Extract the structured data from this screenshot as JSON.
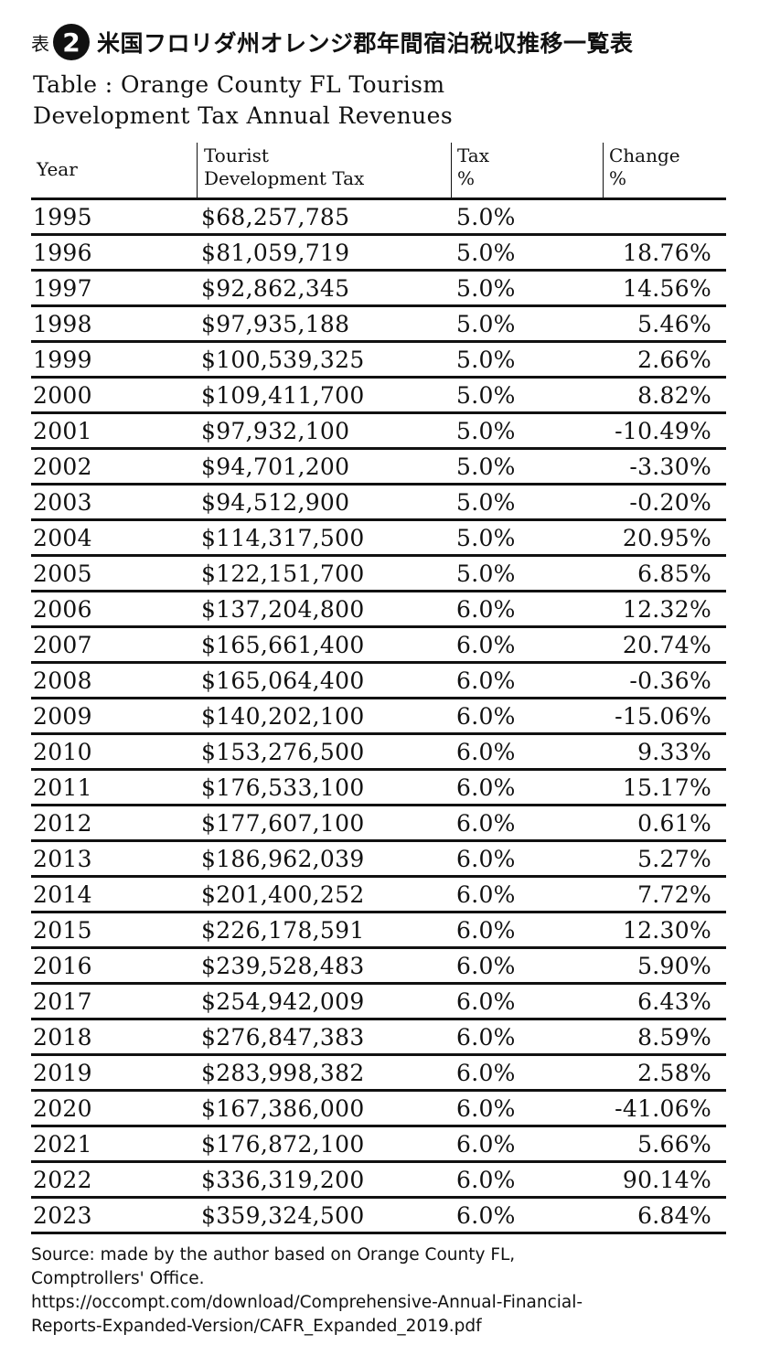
{
  "title_jp": {
    "prefix": "表",
    "number": "2",
    "text": "米国フロリダ州オレンジ郡年間宿泊税収推移一覧表"
  },
  "title_en": {
    "line1": "Table : Orange County FL Tourism",
    "line2": "Development Tax Annual Revenues"
  },
  "table": {
    "headers": {
      "year": "Year",
      "tdt_line1": "Tourist",
      "tdt_line2": "Development Tax",
      "tax_line1": "Tax",
      "tax_line2": "%",
      "change_line1": "Change",
      "change_line2": "%"
    },
    "rows": [
      {
        "year": "1995",
        "tdt": "$68,257,785",
        "tax": "5.0%",
        "change": ""
      },
      {
        "year": "1996",
        "tdt": "$81,059,719",
        "tax": "5.0%",
        "change": "18.76%"
      },
      {
        "year": "1997",
        "tdt": "$92,862,345",
        "tax": "5.0%",
        "change": "14.56%"
      },
      {
        "year": "1998",
        "tdt": "$97,935,188",
        "tax": "5.0%",
        "change": "5.46%"
      },
      {
        "year": "1999",
        "tdt": "$100,539,325",
        "tax": "5.0%",
        "change": "2.66%"
      },
      {
        "year": "2000",
        "tdt": "$109,411,700",
        "tax": "5.0%",
        "change": "8.82%"
      },
      {
        "year": "2001",
        "tdt": "$97,932,100",
        "tax": "5.0%",
        "change": "-10.49%"
      },
      {
        "year": "2002",
        "tdt": "$94,701,200",
        "tax": "5.0%",
        "change": "-3.30%"
      },
      {
        "year": "2003",
        "tdt": "$94,512,900",
        "tax": "5.0%",
        "change": "-0.20%"
      },
      {
        "year": "2004",
        "tdt": "$114,317,500",
        "tax": "5.0%",
        "change": "20.95%"
      },
      {
        "year": "2005",
        "tdt": "$122,151,700",
        "tax": "5.0%",
        "change": "6.85%"
      },
      {
        "year": "2006",
        "tdt": "$137,204,800",
        "tax": "6.0%",
        "change": "12.32%"
      },
      {
        "year": "2007",
        "tdt": "$165,661,400",
        "tax": "6.0%",
        "change": "20.74%"
      },
      {
        "year": "2008",
        "tdt": "$165,064,400",
        "tax": "6.0%",
        "change": "-0.36%"
      },
      {
        "year": "2009",
        "tdt": "$140,202,100",
        "tax": "6.0%",
        "change": "-15.06%"
      },
      {
        "year": "2010",
        "tdt": "$153,276,500",
        "tax": "6.0%",
        "change": "9.33%"
      },
      {
        "year": "2011",
        "tdt": "$176,533,100",
        "tax": "6.0%",
        "change": "15.17%"
      },
      {
        "year": "2012",
        "tdt": "$177,607,100",
        "tax": "6.0%",
        "change": "0.61%"
      },
      {
        "year": "2013",
        "tdt": "$186,962,039",
        "tax": "6.0%",
        "change": "5.27%"
      },
      {
        "year": "2014",
        "tdt": "$201,400,252",
        "tax": "6.0%",
        "change": "7.72%"
      },
      {
        "year": "2015",
        "tdt": "$226,178,591",
        "tax": "6.0%",
        "change": "12.30%"
      },
      {
        "year": "2016",
        "tdt": "$239,528,483",
        "tax": "6.0%",
        "change": "5.90%"
      },
      {
        "year": "2017",
        "tdt": "$254,942,009",
        "tax": "6.0%",
        "change": "6.43%"
      },
      {
        "year": "2018",
        "tdt": "$276,847,383",
        "tax": "6.0%",
        "change": "8.59%"
      },
      {
        "year": "2019",
        "tdt": "$283,998,382",
        "tax": "6.0%",
        "change": "2.58%"
      },
      {
        "year": "2020",
        "tdt": "$167,386,000",
        "tax": "6.0%",
        "change": "-41.06%"
      },
      {
        "year": "2021",
        "tdt": "$176,872,100",
        "tax": "6.0%",
        "change": "5.66%"
      },
      {
        "year": "2022",
        "tdt": "$336,319,200",
        "tax": "6.0%",
        "change": "90.14%"
      },
      {
        "year": "2023",
        "tdt": "$359,324,500",
        "tax": "6.0%",
        "change": "6.84%"
      }
    ]
  },
  "source": {
    "line1": "Source: made by the author based on Orange County FL,",
    "line2": "Comptrollers' Office.",
    "line3": "https://occompt.com/download/Comprehensive-Annual-Financial-",
    "line4": "Reports-Expanded-Version/CAFR_Expanded_2019.pdf"
  }
}
